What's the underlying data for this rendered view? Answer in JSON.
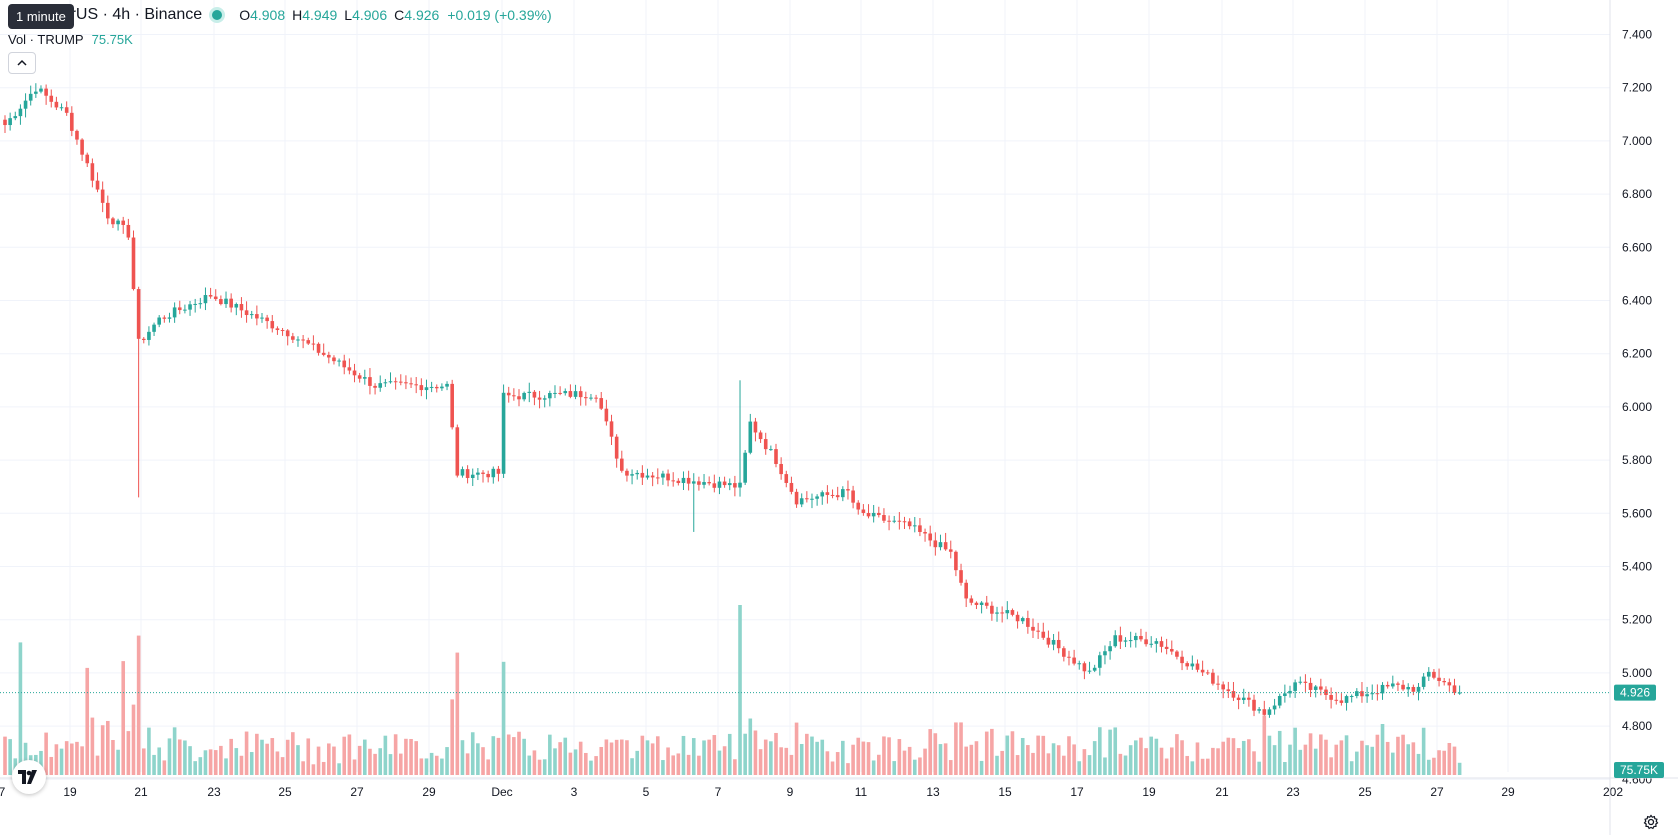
{
  "header": {
    "symbol_text": "P / TetherUS · 4h · Binance",
    "tooltip": "1 minute",
    "ohlc": {
      "o_label": "O",
      "o_value": "4.908",
      "h_label": "H",
      "h_value": "4.949",
      "l_label": "L",
      "l_value": "4.906",
      "c_label": "C",
      "c_value": "4.926",
      "change": "+0.019 (+0.39%)"
    },
    "volume_label": "Vol · TRUMP",
    "volume_value": "75.75K"
  },
  "colors": {
    "up": "#26a69a",
    "down": "#ef5350",
    "up_volume": "#8ed4cb",
    "down_volume": "#f6a5a5",
    "grid": "#f0f3fa"
  },
  "icons": {
    "collapse": "chevron-up-icon",
    "logo": "tradingview-logo-icon",
    "settings": "gear-icon"
  },
  "chart_data": {
    "type": "candlestick",
    "interval": "4h",
    "y_ticks": [
      "7.400",
      "7.200",
      "7.000",
      "6.800",
      "6.600",
      "6.400",
      "6.200",
      "6.000",
      "5.800",
      "5.600",
      "5.400",
      "5.200",
      "5.000",
      "4.800",
      "4.600"
    ],
    "ylim": [
      4.54,
      7.52
    ],
    "x_ticks": [
      "7",
      "19",
      "21",
      "23",
      "25",
      "27",
      "29",
      "Dec",
      "3",
      "5",
      "7",
      "9",
      "11",
      "13",
      "15",
      "17",
      "19",
      "21",
      "23",
      "25",
      "27",
      "29",
      "202"
    ],
    "last_price_label": "4.926",
    "last_volume_label": "75.75K",
    "grid": true,
    "anchor_points": [
      {
        "i": 0,
        "p": 7.06
      },
      {
        "i": 6,
        "p": 7.2
      },
      {
        "i": 12,
        "p": 7.1
      },
      {
        "i": 20,
        "p": 6.72
      },
      {
        "i": 24,
        "p": 6.65
      },
      {
        "i": 26,
        "p": 6.24
      },
      {
        "i": 30,
        "p": 6.33
      },
      {
        "i": 40,
        "p": 6.42
      },
      {
        "i": 55,
        "p": 6.28
      },
      {
        "i": 72,
        "p": 6.08
      },
      {
        "i": 86,
        "p": 6.08
      },
      {
        "i": 88,
        "p": 5.75
      },
      {
        "i": 96,
        "p": 5.75
      },
      {
        "i": 97,
        "p": 6.04
      },
      {
        "i": 115,
        "p": 6.05
      },
      {
        "i": 120,
        "p": 5.76
      },
      {
        "i": 143,
        "p": 5.7
      },
      {
        "i": 145,
        "p": 5.94
      },
      {
        "i": 150,
        "p": 5.8
      },
      {
        "i": 154,
        "p": 5.65
      },
      {
        "i": 164,
        "p": 5.68
      },
      {
        "i": 166,
        "p": 5.6
      },
      {
        "i": 176,
        "p": 5.55
      },
      {
        "i": 184,
        "p": 5.45
      },
      {
        "i": 187,
        "p": 5.27
      },
      {
        "i": 198,
        "p": 5.2
      },
      {
        "i": 211,
        "p": 5.0
      },
      {
        "i": 216,
        "p": 5.13
      },
      {
        "i": 224,
        "p": 5.12
      },
      {
        "i": 236,
        "p": 4.96
      },
      {
        "i": 245,
        "p": 4.85
      },
      {
        "i": 251,
        "p": 4.96
      },
      {
        "i": 260,
        "p": 4.9
      },
      {
        "i": 270,
        "p": 4.95
      },
      {
        "i": 275,
        "p": 4.94
      },
      {
        "i": 277,
        "p": 5.0
      },
      {
        "i": 283,
        "p": 4.926
      }
    ],
    "price_spikes": [
      {
        "i": 26,
        "low": 5.66
      },
      {
        "i": 143,
        "high": 6.1
      },
      {
        "i": 245,
        "low": 4.75
      },
      {
        "i": 134,
        "low": 5.53
      }
    ],
    "volume_spikes": [
      {
        "i": 3,
        "v": 0.78
      },
      {
        "i": 16,
        "v": 0.63
      },
      {
        "i": 26,
        "v": 0.82
      },
      {
        "i": 23,
        "v": 0.67
      },
      {
        "i": 88,
        "v": 0.72
      },
      {
        "i": 143,
        "v": 1.0
      },
      {
        "i": 245,
        "v": 0.35
      },
      {
        "i": 268,
        "v": 0.3
      }
    ]
  }
}
